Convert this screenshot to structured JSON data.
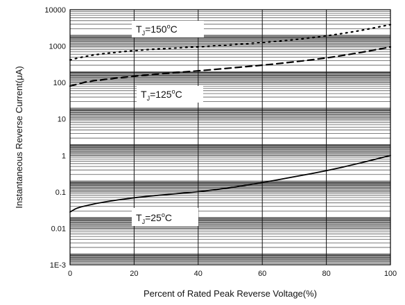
{
  "chart_data": {
    "type": "line",
    "xlabel": "Percent of Rated Peak Reverse Voltage(%)",
    "ylabel": "Instantaneous Reverse Current(μA)",
    "y_scale": "log",
    "xlim": [
      0,
      100
    ],
    "ylim": [
      0.001,
      10000
    ],
    "x_ticks": [
      0,
      20,
      40,
      60,
      80,
      100
    ],
    "x_tick_labels": [
      "0",
      "20",
      "40",
      "60",
      "80",
      "100"
    ],
    "y_ticks": [
      0.001,
      0.01,
      0.1,
      1,
      10,
      100,
      1000,
      10000
    ],
    "y_tick_labels": [
      "1E-3",
      "0.01",
      "0.1",
      "1",
      "10",
      "100",
      "1000",
      "10000"
    ],
    "grid": true,
    "series": [
      {
        "name": "TJ=150°C",
        "label": {
          "main": "T",
          "sub": "J",
          "rest": "=150",
          "sup": "o",
          "unit": "C"
        },
        "style": "dotted",
        "x": [
          0,
          5,
          10,
          20,
          30,
          40,
          50,
          60,
          70,
          80,
          90,
          100
        ],
        "y": [
          420,
          530,
          620,
          760,
          860,
          960,
          1080,
          1250,
          1500,
          1900,
          2600,
          3900
        ]
      },
      {
        "name": "TJ=125°C",
        "label": {
          "main": "T",
          "sub": "J",
          "rest": "=125",
          "sup": "o",
          "unit": "C"
        },
        "style": "dashed",
        "x": [
          0,
          5,
          10,
          20,
          30,
          40,
          50,
          60,
          70,
          80,
          90,
          100
        ],
        "y": [
          80,
          105,
          120,
          150,
          180,
          210,
          250,
          300,
          370,
          470,
          650,
          950
        ]
      },
      {
        "name": "TJ=25°C",
        "label": {
          "main": "T",
          "sub": "J",
          "rest": "=25",
          "sup": "o",
          "unit": "C"
        },
        "style": "solid",
        "x": [
          0,
          2,
          5,
          10,
          20,
          30,
          40,
          50,
          60,
          70,
          80,
          90,
          100
        ],
        "y": [
          0.028,
          0.036,
          0.042,
          0.052,
          0.07,
          0.085,
          0.1,
          0.13,
          0.18,
          0.26,
          0.38,
          0.6,
          1.0
        ]
      }
    ]
  }
}
